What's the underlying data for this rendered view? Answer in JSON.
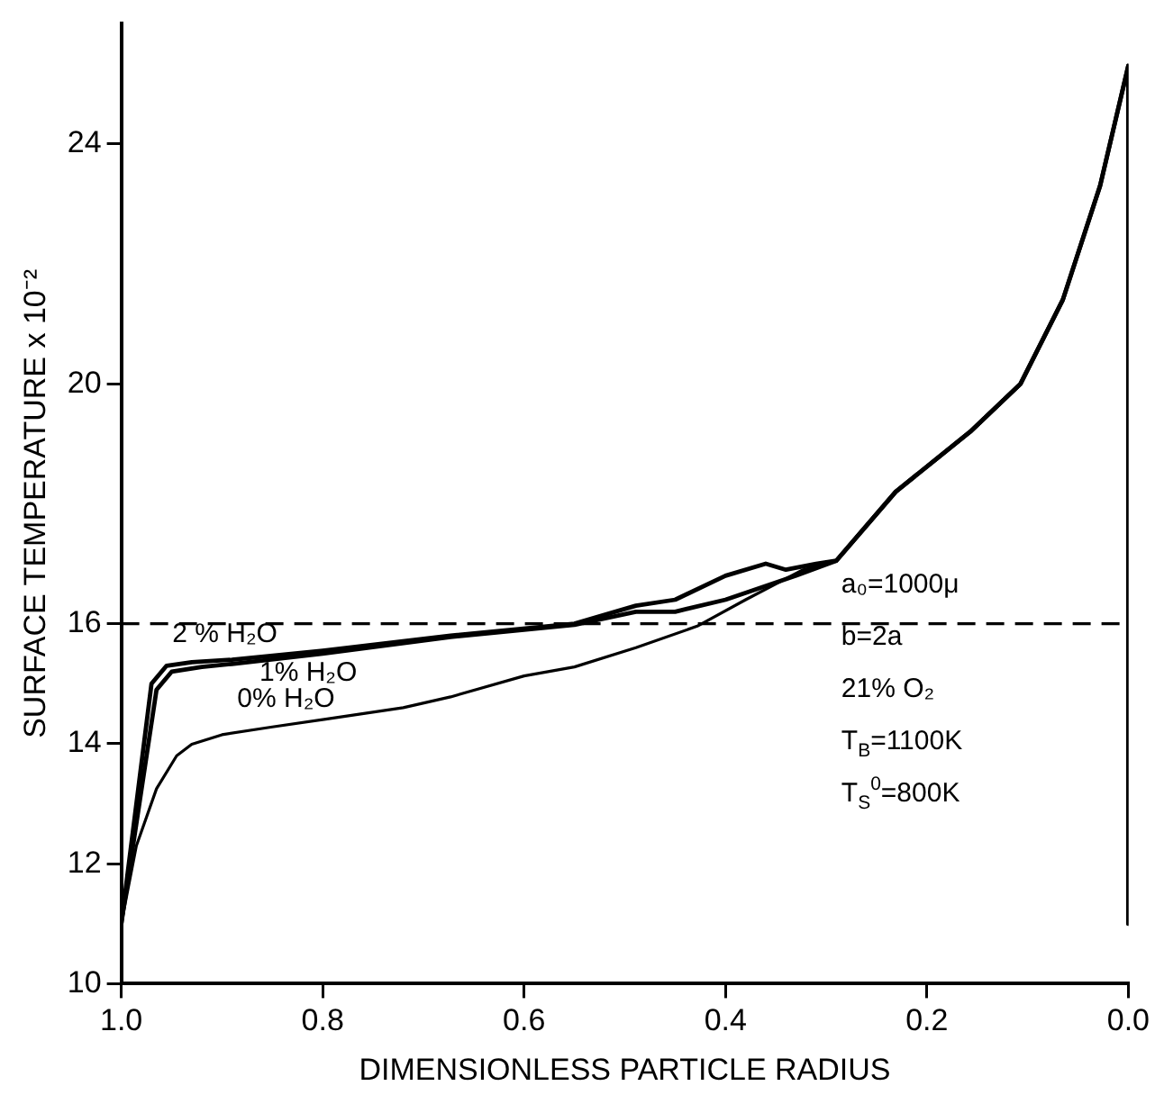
{
  "chart_data": {
    "type": "line",
    "xlabel": "DIMENSIONLESS PARTICLE RADIUS",
    "ylabel": "SURFACE TEMPERATURE x 10⁻²",
    "xlim": [
      1.0,
      0.0
    ],
    "xticks": [
      {
        "value": 1.0,
        "label": "1.0"
      },
      {
        "value": 0.8,
        "label": "0.8"
      },
      {
        "value": 0.6,
        "label": "0.6"
      },
      {
        "value": 0.4,
        "label": "0.4"
      },
      {
        "value": 0.2,
        "label": "0.2"
      },
      {
        "value": 0.0,
        "label": "0.0"
      }
    ],
    "ylim": [
      10,
      26
    ],
    "yticks": [
      10,
      12,
      14,
      16,
      20,
      24
    ],
    "grid": false,
    "legend": false,
    "marker": "none",
    "line_style": "solid",
    "series": [
      {
        "name": "0% H₂O",
        "color": "#000000",
        "x": [
          1.0,
          0.985,
          0.965,
          0.945,
          0.93,
          0.9,
          0.85,
          0.797,
          0.72,
          0.673,
          0.6,
          0.55,
          0.489,
          0.428,
          0.38,
          0.323,
          0.29,
          0.231,
          0.157,
          0.107,
          0.065,
          0.028,
          0.0,
          0.0
        ],
        "values": [
          11.0,
          12.3,
          13.25,
          13.8,
          13.99,
          14.15,
          14.28,
          14.41,
          14.6,
          14.78,
          15.13,
          15.28,
          15.6,
          15.96,
          16.4,
          16.9,
          17.05,
          18.2,
          19.2,
          20.0,
          21.4,
          23.3,
          25.3,
          11.0
        ]
      },
      {
        "name": "1% H₂O",
        "color": "#000000",
        "x": [
          1.0,
          0.965,
          0.95,
          0.92,
          0.89,
          0.8,
          0.673,
          0.55,
          0.489,
          0.45,
          0.4,
          0.33,
          0.29,
          0.231,
          0.157,
          0.107,
          0.065,
          0.028,
          0.0,
          0.0
        ],
        "values": [
          11.0,
          14.9,
          15.2,
          15.28,
          15.33,
          15.5,
          15.78,
          15.98,
          16.2,
          16.2,
          16.4,
          16.8,
          17.05,
          18.2,
          19.2,
          20.0,
          21.4,
          23.3,
          25.3,
          11.0
        ]
      },
      {
        "name": "2 % H₂O",
        "color": "#000000",
        "x": [
          1.0,
          0.97,
          0.955,
          0.93,
          0.89,
          0.8,
          0.673,
          0.55,
          0.489,
          0.45,
          0.4,
          0.36,
          0.34,
          0.31,
          0.29,
          0.231,
          0.157,
          0.107,
          0.065,
          0.028,
          0.0,
          0.0
        ],
        "values": [
          11.0,
          15.0,
          15.3,
          15.36,
          15.4,
          15.55,
          15.8,
          16.0,
          16.3,
          16.4,
          16.8,
          17.0,
          16.9,
          17.0,
          17.05,
          18.2,
          19.2,
          20.0,
          21.4,
          23.3,
          25.3,
          11.0
        ]
      }
    ],
    "ref_lines": [
      {
        "axis": "y",
        "value": 16,
        "color": "#000000",
        "line_style": "dashed"
      }
    ],
    "annotations": [
      "a₀=1000μ",
      "b=2a",
      "21% O₂",
      "T$_{B}$=1100K",
      "T$_{S}$$^{0}$=800K"
    ]
  }
}
